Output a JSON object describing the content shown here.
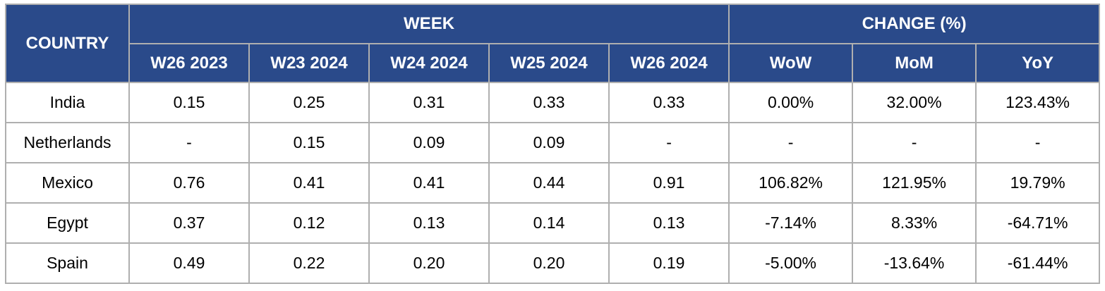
{
  "table": {
    "header": {
      "country": "COUNTRY",
      "week_group": "WEEK",
      "change_group": "CHANGE (%)",
      "week_cols": [
        "W26 2023",
        "W23 2024",
        "W24 2024",
        "W25 2024",
        "W26 2024"
      ],
      "change_cols": [
        "WoW",
        "MoM",
        "YoY"
      ]
    },
    "rows": [
      {
        "country": "India",
        "values": [
          "0.15",
          "0.25",
          "0.31",
          "0.33",
          "0.33"
        ],
        "changes": [
          "0.00%",
          "32.00%",
          "123.43%"
        ]
      },
      {
        "country": "Netherlands",
        "values": [
          "-",
          "0.15",
          "0.09",
          "0.09",
          "-"
        ],
        "changes": [
          "-",
          "-",
          "-"
        ]
      },
      {
        "country": "Mexico",
        "values": [
          "0.76",
          "0.41",
          "0.41",
          "0.44",
          "0.91"
        ],
        "changes": [
          "106.82%",
          "121.95%",
          "19.79%"
        ]
      },
      {
        "country": "Egypt",
        "values": [
          "0.37",
          "0.12",
          "0.13",
          "0.14",
          "0.13"
        ],
        "changes": [
          "-7.14%",
          "8.33%",
          "-64.71%"
        ]
      },
      {
        "country": "Spain",
        "values": [
          "0.49",
          "0.22",
          "0.20",
          "0.20",
          "0.19"
        ],
        "changes": [
          "-5.00%",
          "-13.64%",
          "-61.44%"
        ]
      }
    ],
    "colors": {
      "header_bg": "#2A4A8A",
      "header_text": "#FFFFFF",
      "grid": "#AFAFAF",
      "cell_bg": "#FFFFFF",
      "cell_text": "#000000"
    }
  },
  "chart_data": {
    "type": "table",
    "title": "",
    "column_groups": [
      "COUNTRY",
      "WEEK",
      "CHANGE (%)"
    ],
    "columns": [
      "COUNTRY",
      "W26 2023",
      "W23 2024",
      "W24 2024",
      "W25 2024",
      "W26 2024",
      "WoW",
      "MoM",
      "YoY"
    ],
    "rows": [
      [
        "India",
        0.15,
        0.25,
        0.31,
        0.33,
        0.33,
        "0.00%",
        "32.00%",
        "123.43%"
      ],
      [
        "Netherlands",
        "-",
        0.15,
        0.09,
        0.09,
        "-",
        "-",
        "-",
        "-"
      ],
      [
        "Mexico",
        0.76,
        0.41,
        0.41,
        0.44,
        0.91,
        "106.82%",
        "121.95%",
        "19.79%"
      ],
      [
        "Egypt",
        0.37,
        0.12,
        0.13,
        0.14,
        0.13,
        "-7.14%",
        "8.33%",
        "-64.71%"
      ],
      [
        "Spain",
        0.49,
        0.22,
        0.2,
        0.2,
        0.19,
        "-5.00%",
        "-13.64%",
        "-61.44%"
      ]
    ]
  }
}
